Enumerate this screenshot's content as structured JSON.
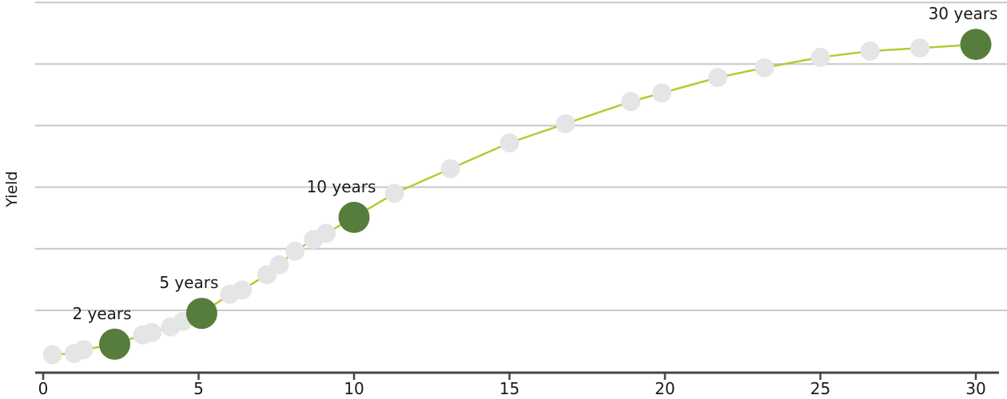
{
  "chart_data": {
    "type": "line",
    "title": "",
    "xlabel": "",
    "ylabel": "Yield",
    "x_ticks": [
      0,
      5,
      10,
      15,
      20,
      25,
      30
    ],
    "xlim": [
      0,
      31
    ],
    "ylim": [
      0,
      6
    ],
    "gridlines_y": [
      1,
      2,
      3,
      4,
      5,
      6
    ],
    "grid": true,
    "legend": false,
    "series_name": "yield-curve",
    "points": [
      {
        "x": 0.3,
        "y": 0.28
      },
      {
        "x": 1.0,
        "y": 0.3
      },
      {
        "x": 1.3,
        "y": 0.36
      },
      {
        "x": 2.3,
        "y": 0.45,
        "label": "2 years"
      },
      {
        "x": 3.2,
        "y": 0.6
      },
      {
        "x": 3.5,
        "y": 0.64
      },
      {
        "x": 4.1,
        "y": 0.73
      },
      {
        "x": 4.5,
        "y": 0.82
      },
      {
        "x": 5.1,
        "y": 0.95,
        "label": "5 years"
      },
      {
        "x": 6.0,
        "y": 1.26
      },
      {
        "x": 6.4,
        "y": 1.33
      },
      {
        "x": 7.2,
        "y": 1.58
      },
      {
        "x": 7.6,
        "y": 1.74
      },
      {
        "x": 8.1,
        "y": 1.96
      },
      {
        "x": 8.7,
        "y": 2.15
      },
      {
        "x": 9.1,
        "y": 2.25
      },
      {
        "x": 10.0,
        "y": 2.51,
        "label": "10 years"
      },
      {
        "x": 11.3,
        "y": 2.9
      },
      {
        "x": 13.1,
        "y": 3.3
      },
      {
        "x": 15.0,
        "y": 3.72
      },
      {
        "x": 16.8,
        "y": 4.03
      },
      {
        "x": 18.9,
        "y": 4.39
      },
      {
        "x": 19.9,
        "y": 4.53
      },
      {
        "x": 21.7,
        "y": 4.78
      },
      {
        "x": 23.2,
        "y": 4.94
      },
      {
        "x": 25.0,
        "y": 5.11
      },
      {
        "x": 26.6,
        "y": 5.21
      },
      {
        "x": 28.2,
        "y": 5.26
      },
      {
        "x": 30.0,
        "y": 5.32,
        "label": "30 years"
      }
    ],
    "colors": {
      "line": "#b9c832",
      "dot": "#e4e6e6",
      "highlight_dot": "#567d3b",
      "grid": "#c6c8c8",
      "axis": "#454545",
      "text": "#1a1a1a"
    }
  }
}
